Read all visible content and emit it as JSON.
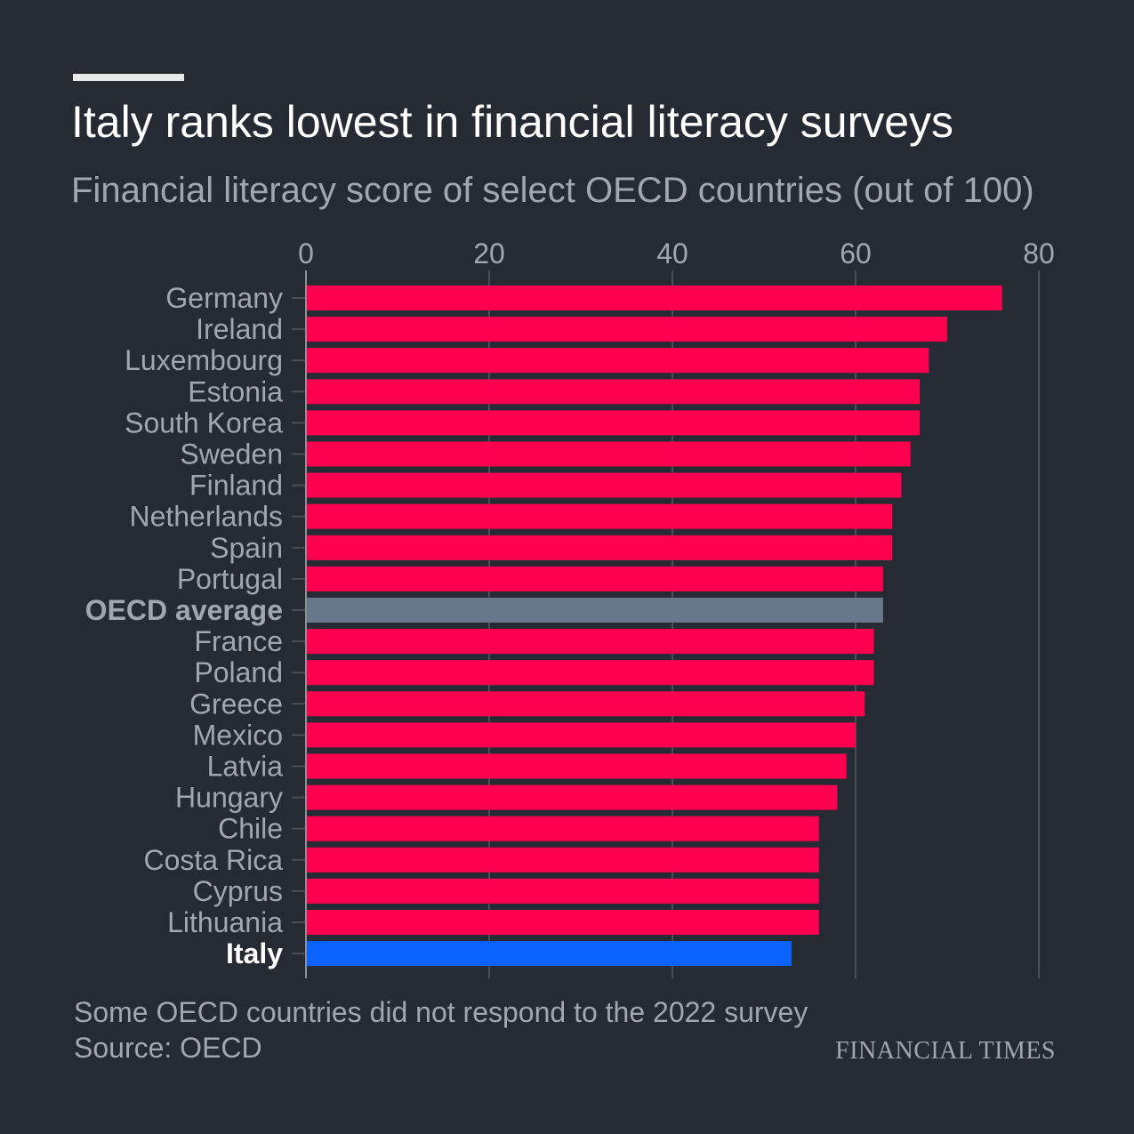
{
  "header": {
    "title": "Italy ranks lowest in financial literacy surveys",
    "subtitle": "Financial literacy score of select OECD countries (out of 100)"
  },
  "footer": {
    "note": "Some OECD countries did not respond to the 2022 survey",
    "source": "Source: OECD",
    "brand": "FINANCIAL TIMES"
  },
  "colors": {
    "default": "#ff0050",
    "average": "#66788a",
    "highlight": "#0a62ff",
    "grid": "#4a4e57",
    "label": "#a3a6ad"
  },
  "chart_data": {
    "type": "bar",
    "orientation": "horizontal",
    "title": "Italy ranks lowest in financial literacy surveys",
    "subtitle": "Financial literacy score of select OECD countries (out of 100)",
    "xlim": [
      0,
      80
    ],
    "xticks": [
      0,
      20,
      40,
      60,
      80
    ],
    "grid": true,
    "categories": [
      "Germany",
      "Ireland",
      "Luxembourg",
      "Estonia",
      "South Korea",
      "Sweden",
      "Finland",
      "Netherlands",
      "Spain",
      "Portugal",
      "OECD average",
      "France",
      "Poland",
      "Greece",
      "Mexico",
      "Latvia",
      "Hungary",
      "Chile",
      "Costa Rica",
      "Cyprus",
      "Lithuania",
      "Italy"
    ],
    "values": [
      76,
      70,
      68,
      67,
      67,
      66,
      65,
      64,
      64,
      63,
      63,
      62,
      62,
      61,
      60,
      59,
      58,
      56,
      56,
      56,
      56,
      53
    ],
    "highlight": {
      "OECD average": "average",
      "Italy": "highlight"
    }
  }
}
